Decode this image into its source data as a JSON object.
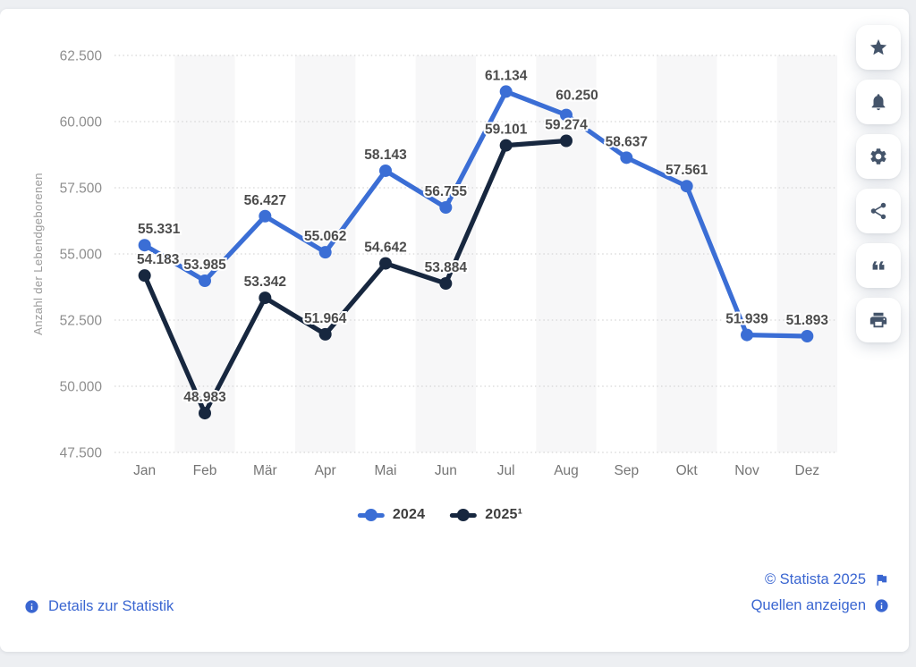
{
  "chart_data": {
    "type": "line",
    "title": "",
    "ylabel": "Anzahl der Lebendgeborenen",
    "xlabel": "",
    "categories": [
      "Jan",
      "Feb",
      "Mär",
      "Apr",
      "Mai",
      "Jun",
      "Jul",
      "Aug",
      "Sep",
      "Okt",
      "Nov",
      "Dez"
    ],
    "y_ticks": [
      "47.500",
      "50.000",
      "52.500",
      "55.000",
      "57.500",
      "60.000",
      "62.500"
    ],
    "ylim": [
      47500,
      62500
    ],
    "grid": "horizontal-dotted",
    "column_banding": "alternate-light",
    "legend_position": "bottom",
    "series": [
      {
        "name": "2024",
        "color": "#3b6ed5",
        "values": [
          55331,
          53985,
          56427,
          55062,
          58143,
          56755,
          61134,
          60250,
          58637,
          57561,
          51939,
          51893
        ],
        "labels": [
          "55.331",
          "53.985",
          "56.427",
          "55.062",
          "58.143",
          "56.755",
          "61.134",
          "60.250",
          "58.637",
          "57.561",
          "51.939",
          "51.893"
        ]
      },
      {
        "name": "2025¹",
        "color": "#17273f",
        "values": [
          54183,
          48983,
          53342,
          51964,
          54642,
          53884,
          59101,
          59274,
          null,
          null,
          null,
          null
        ],
        "labels": [
          "54.183",
          "48.983",
          "53.342",
          "51.964",
          "54.642",
          "53.884",
          "59.101",
          "59.274"
        ]
      }
    ]
  },
  "footer": {
    "details_link": "Details zur Statistik",
    "copyright": "© Statista 2025",
    "sources_link": "Quellen anzeigen"
  },
  "sidebar": {
    "icon_color": "#44546a",
    "buttons": [
      "star",
      "bell",
      "gear",
      "share",
      "quote",
      "printer"
    ]
  },
  "colors": {
    "link_blue": "#3a66d1",
    "grid_gray": "#d6d6d6",
    "band_gray": "#f7f7f8",
    "tick_label_gray": "#8e8e8e",
    "month_label_gray": "#757575",
    "data_label_gray": "#4c4c4c",
    "axis_title_gray": "#9a9a9a"
  }
}
